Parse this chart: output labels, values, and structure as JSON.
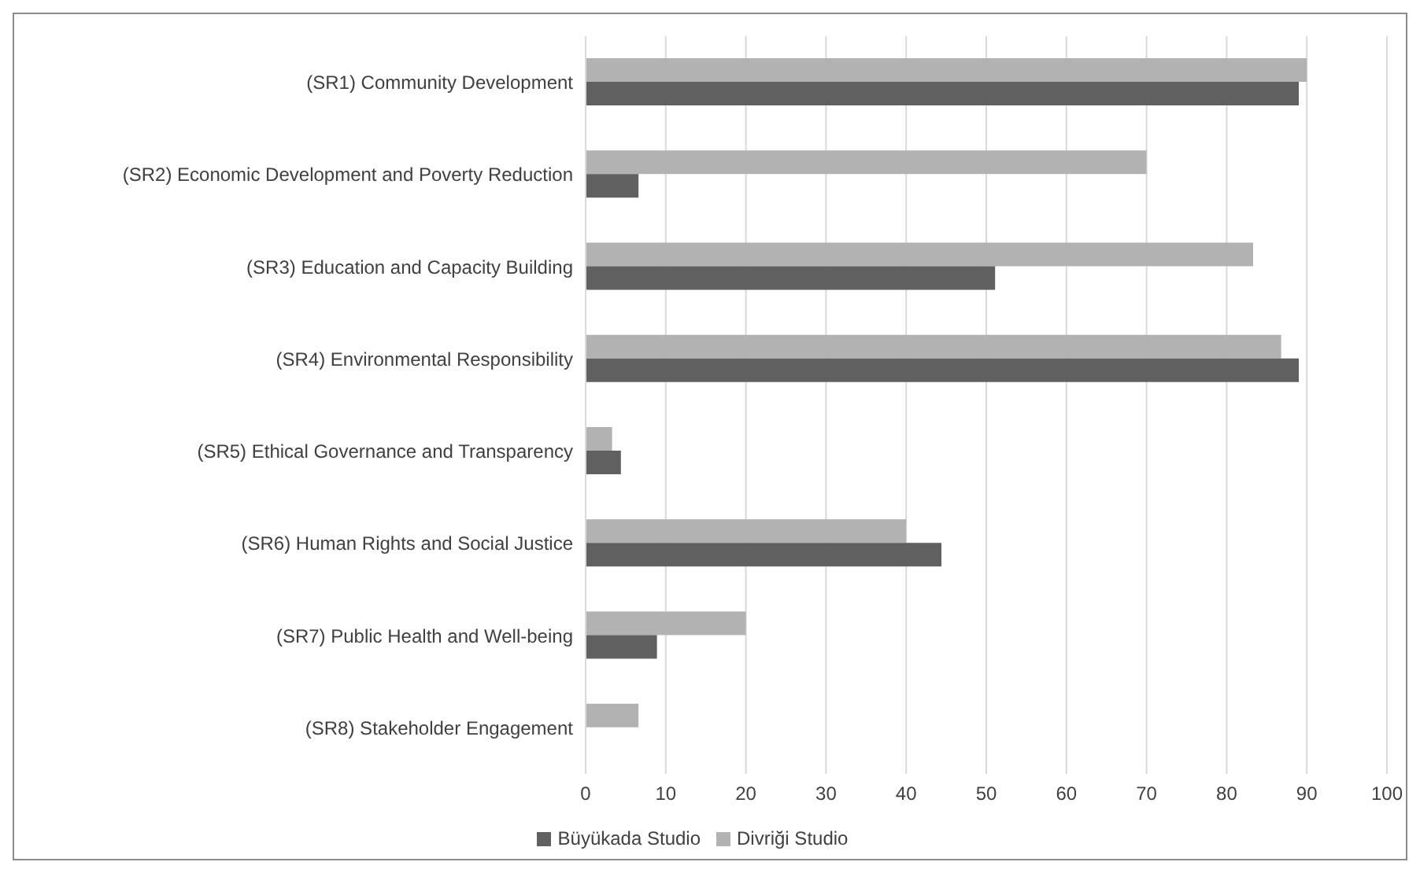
{
  "chart_data": {
    "type": "bar",
    "orientation": "horizontal",
    "categories": [
      "(SR1) Community Development",
      "(SR2) Economic Development and Poverty Reduction",
      "(SR3) Education and Capacity Building",
      "(SR4) Environmental Responsibility",
      "(SR5) Ethical Governance and Transparency",
      "(SR6) Human Rights and Social Justice",
      "(SR7) Public Health and Well-being",
      "(SR8) Stakeholder Engagement"
    ],
    "series": [
      {
        "name": "Divriği Studio",
        "color": "#b2b2b2",
        "values": [
          90,
          70,
          83.3,
          86.8,
          3.3,
          40,
          20,
          6.6
        ]
      },
      {
        "name": "Büyükada Studio",
        "color": "#606060",
        "values": [
          89,
          6.6,
          51.1,
          89,
          4.4,
          44.4,
          8.9,
          null
        ]
      }
    ],
    "xlim": [
      0,
      100
    ],
    "xticks": [
      0,
      10,
      20,
      30,
      40,
      50,
      60,
      70,
      80,
      90,
      100
    ],
    "grid": "x",
    "legend": "bottom"
  }
}
